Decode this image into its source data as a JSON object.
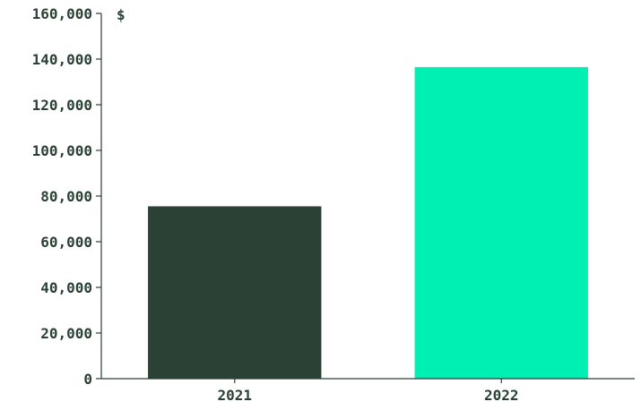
{
  "chart_data": {
    "type": "bar",
    "categories": [
      "2021",
      "2022"
    ],
    "values": [
      75500,
      136500
    ],
    "ylabel": "$",
    "ylim": [
      0,
      160000
    ],
    "yticks": [
      "0",
      "20,000",
      "40,000",
      "60,000",
      "80,000",
      "100,000",
      "120,000",
      "140,000",
      "160,000"
    ],
    "grid": false,
    "bar_colors": [
      "#2b4135",
      "#00f0b3"
    ],
    "axis_color": "#2b4135",
    "text_color": "#2b4135"
  }
}
